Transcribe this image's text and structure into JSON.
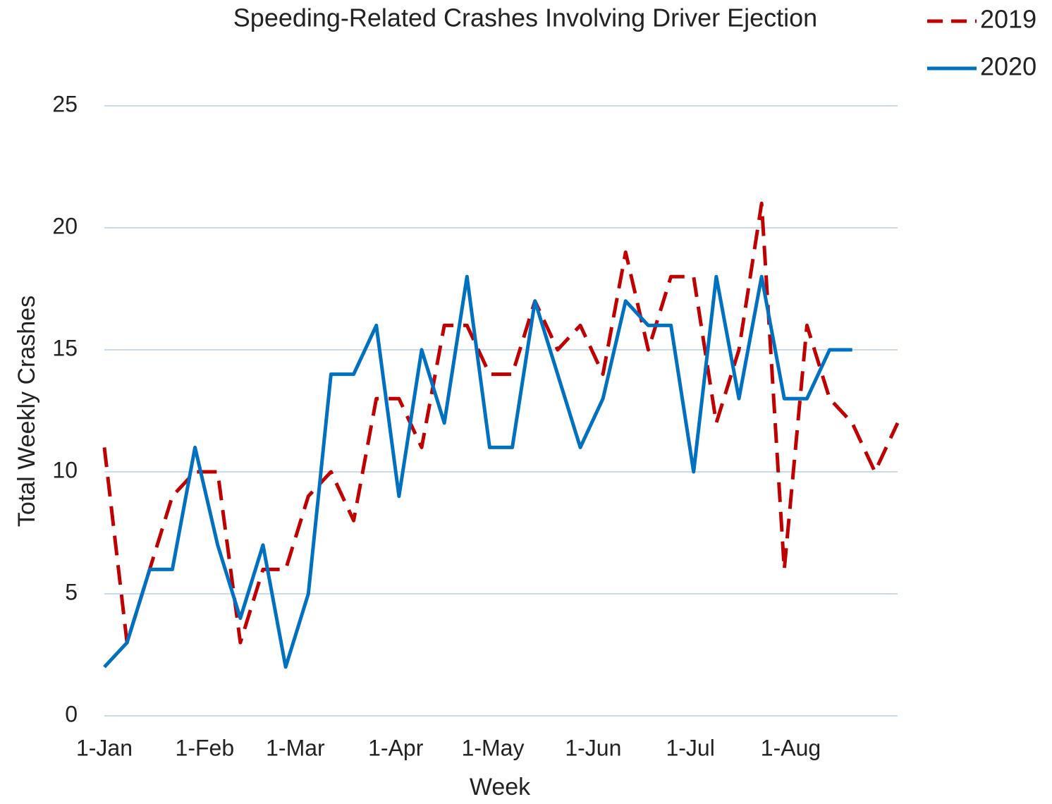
{
  "chart_data": {
    "type": "line",
    "title": "Speeding-Related Crashes Involving Driver Ejection",
    "x_label": "Week",
    "y_label": "Total Weekly Crashes",
    "series": [
      {
        "name": "2019",
        "color": "#c00000",
        "dash": true,
        "x": [
          0,
          7,
          14,
          21,
          28,
          35,
          42,
          49,
          56,
          63,
          70,
          77,
          84,
          91,
          98,
          105,
          112,
          119,
          126,
          133,
          140,
          147,
          154,
          161,
          168,
          175,
          182,
          189,
          196,
          203,
          210,
          217,
          224,
          231,
          238,
          245
        ],
        "values": [
          11,
          3,
          6,
          9,
          10,
          10,
          3,
          6,
          6,
          9,
          10,
          8,
          13,
          13,
          11,
          16,
          16,
          14,
          14,
          17,
          15,
          16,
          14,
          19,
          15,
          18,
          18,
          12,
          15,
          21,
          6,
          16,
          13,
          12,
          10,
          12
        ]
      },
      {
        "name": "2020",
        "color": "#0070c0",
        "dash": false,
        "x": [
          0,
          7,
          14,
          21,
          28,
          35,
          42,
          49,
          56,
          63,
          70,
          77,
          84,
          91,
          98,
          105,
          112,
          119,
          126,
          133,
          140,
          147,
          154,
          161,
          168,
          175,
          182,
          189,
          196,
          203,
          210,
          217,
          224,
          231
        ],
        "values": [
          2,
          3,
          6,
          6,
          11,
          7,
          4,
          7,
          2,
          5,
          14,
          14,
          16,
          9,
          15,
          12,
          18,
          11,
          11,
          17,
          14,
          11,
          13,
          17,
          16,
          16,
          10,
          18,
          13,
          18,
          13,
          13,
          15,
          15
        ]
      }
    ],
    "xlim": [
      0,
      245
    ],
    "xticks": [
      {
        "value": 0,
        "label": "1-Jan"
      },
      {
        "value": 31,
        "label": "1-Feb"
      },
      {
        "value": 59,
        "label": "1-Mar"
      },
      {
        "value": 90,
        "label": "1-Apr"
      },
      {
        "value": 120,
        "label": "1-May"
      },
      {
        "value": 151,
        "label": "1-Jun"
      },
      {
        "value": 181,
        "label": "1-Jul"
      },
      {
        "value": 212,
        "label": "1-Aug"
      }
    ],
    "ylim": [
      0,
      25
    ],
    "yticks": [
      0,
      5,
      10,
      15,
      20,
      25
    ],
    "grid": true,
    "legend": "top-right"
  }
}
